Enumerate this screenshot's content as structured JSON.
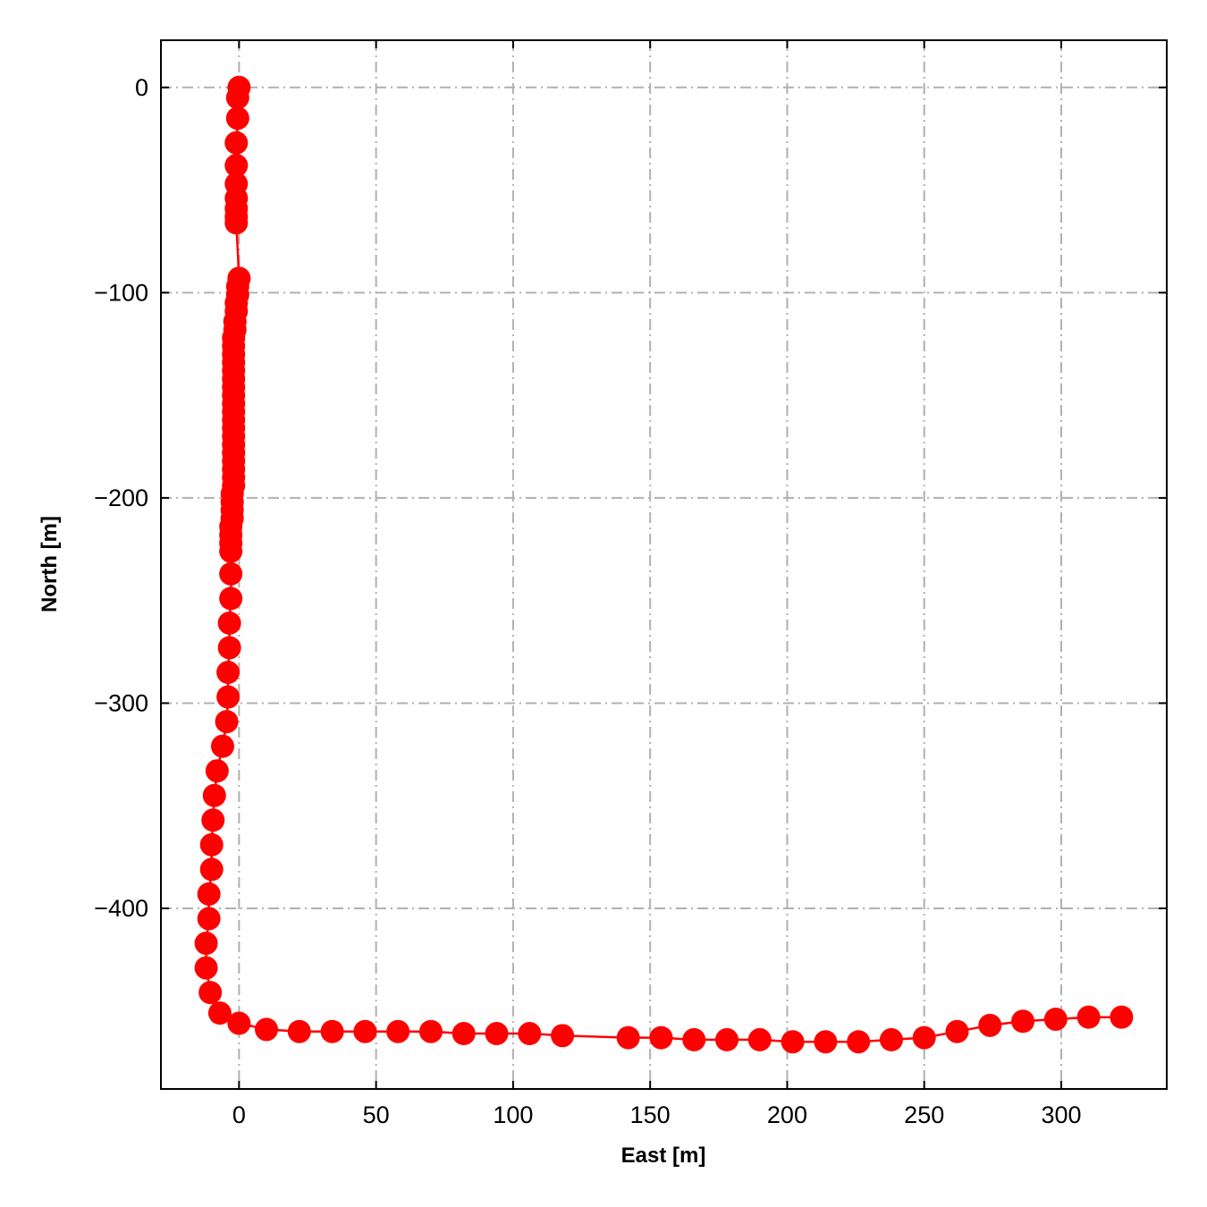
{
  "chart_data": {
    "type": "line",
    "title": "",
    "xlabel": "East [m]",
    "ylabel": "North [m]",
    "xlim": [
      -28.5,
      338.5
    ],
    "ylim": [
      -488,
      23
    ],
    "grid": true,
    "grid_style": "dash-dot",
    "legend": "none",
    "xticks": [
      0,
      50,
      100,
      150,
      200,
      250,
      300
    ],
    "yticks": [
      0,
      -100,
      -200,
      -300,
      -400
    ],
    "series": [
      {
        "color": "#ff0000",
        "marker": "circle",
        "points": [
          [
            0,
            0
          ],
          [
            -0.5,
            -5
          ],
          [
            -0.5,
            -15
          ],
          [
            -1,
            -27
          ],
          [
            -1,
            -38
          ],
          [
            -1,
            -47
          ],
          [
            -1,
            -54
          ],
          [
            -1,
            -59
          ],
          [
            -1,
            -63
          ],
          [
            -1,
            -66
          ],
          [
            0,
            -93
          ],
          [
            -0.5,
            -97
          ],
          [
            -0.5,
            -101
          ],
          [
            -1,
            -105
          ],
          [
            -1,
            -109
          ],
          [
            -1.5,
            -114
          ],
          [
            -1.5,
            -118
          ],
          [
            -2,
            -122
          ],
          [
            -2,
            -126
          ],
          [
            -2,
            -130
          ],
          [
            -2,
            -134
          ],
          [
            -2,
            -138
          ],
          [
            -2,
            -142
          ],
          [
            -2,
            -146
          ],
          [
            -2,
            -150
          ],
          [
            -2,
            -154
          ],
          [
            -2,
            -158
          ],
          [
            -2,
            -162
          ],
          [
            -2,
            -166
          ],
          [
            -2,
            -170
          ],
          [
            -2,
            -174
          ],
          [
            -2,
            -178
          ],
          [
            -2,
            -182
          ],
          [
            -2,
            -186
          ],
          [
            -2,
            -190
          ],
          [
            -2,
            -194
          ],
          [
            -2.5,
            -198
          ],
          [
            -2.5,
            -202
          ],
          [
            -2.5,
            -206
          ],
          [
            -2.5,
            -210
          ],
          [
            -3,
            -214
          ],
          [
            -3,
            -218
          ],
          [
            -3,
            -222
          ],
          [
            -3,
            -226
          ],
          [
            -3,
            -237
          ],
          [
            -3,
            -249
          ],
          [
            -3.5,
            -261
          ],
          [
            -3.5,
            -273
          ],
          [
            -4,
            -285
          ],
          [
            -4,
            -297
          ],
          [
            -4.5,
            -309
          ],
          [
            -6,
            -321
          ],
          [
            -8,
            -333
          ],
          [
            -9,
            -345
          ],
          [
            -9.5,
            -357
          ],
          [
            -10,
            -369
          ],
          [
            -10,
            -381
          ],
          [
            -11,
            -393
          ],
          [
            -11,
            -405
          ],
          [
            -12,
            -417
          ],
          [
            -12,
            -429
          ],
          [
            -10.5,
            -441
          ],
          [
            -7,
            -451
          ],
          [
            0,
            -456
          ],
          [
            10,
            -459
          ],
          [
            22,
            -460
          ],
          [
            34,
            -460
          ],
          [
            46,
            -460
          ],
          [
            58,
            -460
          ],
          [
            70,
            -460
          ],
          [
            82,
            -461
          ],
          [
            94,
            -461
          ],
          [
            106,
            -461
          ],
          [
            118,
            -462
          ],
          [
            142,
            -463
          ],
          [
            154,
            -463
          ],
          [
            166,
            -464
          ],
          [
            178,
            -464
          ],
          [
            190,
            -464
          ],
          [
            202,
            -465
          ],
          [
            214,
            -465
          ],
          [
            226,
            -465
          ],
          [
            238,
            -464
          ],
          [
            250,
            -463
          ],
          [
            262,
            -460
          ],
          [
            274,
            -457
          ],
          [
            286,
            -455
          ],
          [
            298,
            -454
          ],
          [
            310,
            -453
          ],
          [
            322,
            -453
          ]
        ]
      }
    ]
  }
}
